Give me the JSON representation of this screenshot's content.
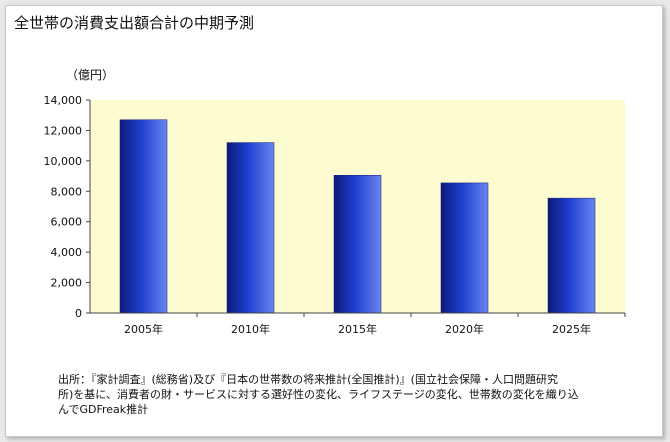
{
  "page": {
    "title": "全世帯の消費支出額合計の中期予測",
    "source_lines": [
      "出所：『家計調査』(総務省)及び『日本の世帯数の将来推計(全国推計)』(国立社会保障・人口問題研究",
      "所)を基に、消費者の財・サービスに対する選好性の変化、ライフステージの変化、世帯数の変化を織り込",
      "んでGDFreak推計"
    ]
  },
  "colors": {
    "plot_bg": "#fdfbd0",
    "bar_dark": "#0c1a7a",
    "bar_mid": "#1f3fd0",
    "bar_light": "#6a86f0"
  },
  "chart_data": {
    "type": "bar",
    "title": "",
    "ylabel": "（億円）",
    "xlabel": "",
    "categories": [
      "2005年",
      "2010年",
      "2015年",
      "2020年",
      "2025年"
    ],
    "values": [
      12700,
      11200,
      9050,
      8550,
      7550
    ],
    "ylim": [
      0,
      14000
    ],
    "yticks": [
      0,
      2000,
      4000,
      6000,
      8000,
      10000,
      12000,
      14000
    ],
    "ytick_labels": [
      "0",
      "2,000",
      "4,000",
      "6,000",
      "8,000",
      "10,000",
      "12,000",
      "14,000"
    ],
    "grid": false,
    "legend": "none"
  }
}
